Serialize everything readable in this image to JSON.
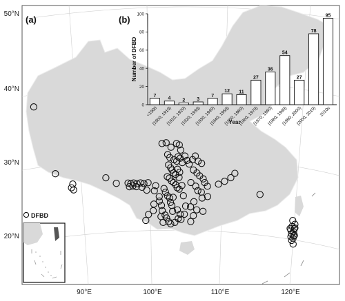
{
  "map": {
    "panel_a": "(a)",
    "lat_labels": [
      "50°N",
      "40°N",
      "30°N",
      "20°N"
    ],
    "lon_labels": [
      "90°E",
      "100°E",
      "110°E",
      "120°E"
    ],
    "legend_label": "DFBD",
    "land_color": "#d9d9d9",
    "marker_color": "#111111",
    "points": [
      [
        83.0,
        38.7
      ],
      [
        86.0,
        29.5
      ],
      [
        88.5,
        28.0
      ],
      [
        88.3,
        27.5
      ],
      [
        88.6,
        27.2
      ],
      [
        93.3,
        28.7
      ],
      [
        94.8,
        27.9
      ],
      [
        96.5,
        27.9
      ],
      [
        96.9,
        27.8
      ],
      [
        97.3,
        27.9
      ],
      [
        97.8,
        27.8
      ],
      [
        98.3,
        27.9
      ],
      [
        98.8,
        27.8
      ],
      [
        99.4,
        27.9
      ],
      [
        96.7,
        27.4
      ],
      [
        97.2,
        27.5
      ],
      [
        97.7,
        27.4
      ],
      [
        98.5,
        27.3
      ],
      [
        99.2,
        26.9
      ],
      [
        99.0,
        22.8
      ],
      [
        99.4,
        23.6
      ],
      [
        100.1,
        24.1
      ],
      [
        100.2,
        25.0
      ],
      [
        100.3,
        26.8
      ],
      [
        100.5,
        27.5
      ],
      [
        101.0,
        26.0
      ],
      [
        101.0,
        25.4
      ],
      [
        101.3,
        24.8
      ],
      [
        101.4,
        24.1
      ],
      [
        101.2,
        23.3
      ],
      [
        101.5,
        22.5
      ],
      [
        101.5,
        33.2
      ],
      [
        102.1,
        33.3
      ],
      [
        102.8,
        32.7
      ],
      [
        103.6,
        33.2
      ],
      [
        104.0,
        33.0
      ],
      [
        104.2,
        32.3
      ],
      [
        102.3,
        31.7
      ],
      [
        102.6,
        31.3
      ],
      [
        103.2,
        31.0
      ],
      [
        103.6,
        30.8
      ],
      [
        103.8,
        31.4
      ],
      [
        104.1,
        31.2
      ],
      [
        104.4,
        30.6
      ],
      [
        102.4,
        30.3
      ],
      [
        102.7,
        29.9
      ],
      [
        102.9,
        29.6
      ],
      [
        103.1,
        29.2
      ],
      [
        103.4,
        29.0
      ],
      [
        103.7,
        29.7
      ],
      [
        104.0,
        29.3
      ],
      [
        103.9,
        28.6
      ],
      [
        102.2,
        28.7
      ],
      [
        102.5,
        28.5
      ],
      [
        102.8,
        28.1
      ],
      [
        103.1,
        27.9
      ],
      [
        103.4,
        27.6
      ],
      [
        103.6,
        27.2
      ],
      [
        103.9,
        27.0
      ],
      [
        104.3,
        27.5
      ],
      [
        101.7,
        27.1
      ],
      [
        101.9,
        26.6
      ],
      [
        102.2,
        26.1
      ],
      [
        102.5,
        25.8
      ],
      [
        102.6,
        25.2
      ],
      [
        102.8,
        24.8
      ],
      [
        102.9,
        24.0
      ],
      [
        101.8,
        23.5
      ],
      [
        102.0,
        23.1
      ],
      [
        102.3,
        22.6
      ],
      [
        102.6,
        22.3
      ],
      [
        103.2,
        22.5
      ],
      [
        103.7,
        23.0
      ],
      [
        104.1,
        22.9
      ],
      [
        104.0,
        23.6
      ],
      [
        103.6,
        24.2
      ],
      [
        103.0,
        25.9
      ],
      [
        104.5,
        26.1
      ],
      [
        104.8,
        24.7
      ],
      [
        104.6,
        23.6
      ],
      [
        105.5,
        22.6
      ],
      [
        104.8,
        31.5
      ],
      [
        105.1,
        30.9
      ],
      [
        105.4,
        30.4
      ],
      [
        105.9,
        31.0
      ],
      [
        106.3,
        31.5
      ],
      [
        106.7,
        30.8
      ],
      [
        107.2,
        30.5
      ],
      [
        106.0,
        29.6
      ],
      [
        106.5,
        29.2
      ],
      [
        106.9,
        28.8
      ],
      [
        107.4,
        28.4
      ],
      [
        107.6,
        27.9
      ],
      [
        108.0,
        27.4
      ],
      [
        105.6,
        27.9
      ],
      [
        106.3,
        27.4
      ],
      [
        106.6,
        26.8
      ],
      [
        107.1,
        26.6
      ],
      [
        108.0,
        26.0
      ],
      [
        107.2,
        25.8
      ],
      [
        106.0,
        25.3
      ],
      [
        105.5,
        24.6
      ],
      [
        106.4,
        24.2
      ],
      [
        105.9,
        23.4
      ],
      [
        107.3,
        24.0
      ],
      [
        109.6,
        27.7
      ],
      [
        110.5,
        28.1
      ],
      [
        111.4,
        28.6
      ],
      [
        112.0,
        29.2
      ],
      [
        115.6,
        26.4
      ],
      [
        120.3,
        23.0
      ],
      [
        120.6,
        22.5
      ],
      [
        120.2,
        22.2
      ],
      [
        120.5,
        21.9
      ],
      [
        120.0,
        21.7
      ],
      [
        120.4,
        21.5
      ],
      [
        120.1,
        21.2
      ],
      [
        120.5,
        21.0
      ],
      [
        120.0,
        20.8
      ],
      [
        120.3,
        20.6
      ],
      [
        120.1,
        20.3
      ],
      [
        120.4,
        20.9
      ],
      [
        119.9,
        21.9
      ],
      [
        120.6,
        22.0
      ],
      [
        120.3,
        19.8
      ]
    ]
  },
  "inset": {
    "panel_b": "(b)",
    "ylabel": "Number of DFBD",
    "xlabel": "Year"
  },
  "chart_data": {
    "type": "bar",
    "title": "",
    "xlabel": "Year",
    "ylabel": "Number of DFBD",
    "ylim": [
      0,
      100
    ],
    "yticks": [
      0,
      20,
      40,
      60,
      80,
      100
    ],
    "categories": [
      "<1900",
      "[1900, 1910)",
      "[1910, 1920)",
      "[1920, 1930)",
      "[1930, 1940)",
      "[1940, 1950)",
      "[1950, 1960)",
      "[1960, 1970)",
      "[1970, 1980)",
      "[1980, 1990)",
      "[1990, 2000)",
      "[2000, 2010)",
      "2010≤"
    ],
    "values": [
      7,
      4,
      2,
      3,
      7,
      12,
      11,
      27,
      36,
      54,
      27,
      78,
      95
    ],
    "bar_fill": "#ffffff",
    "bar_stroke": "#111111"
  }
}
